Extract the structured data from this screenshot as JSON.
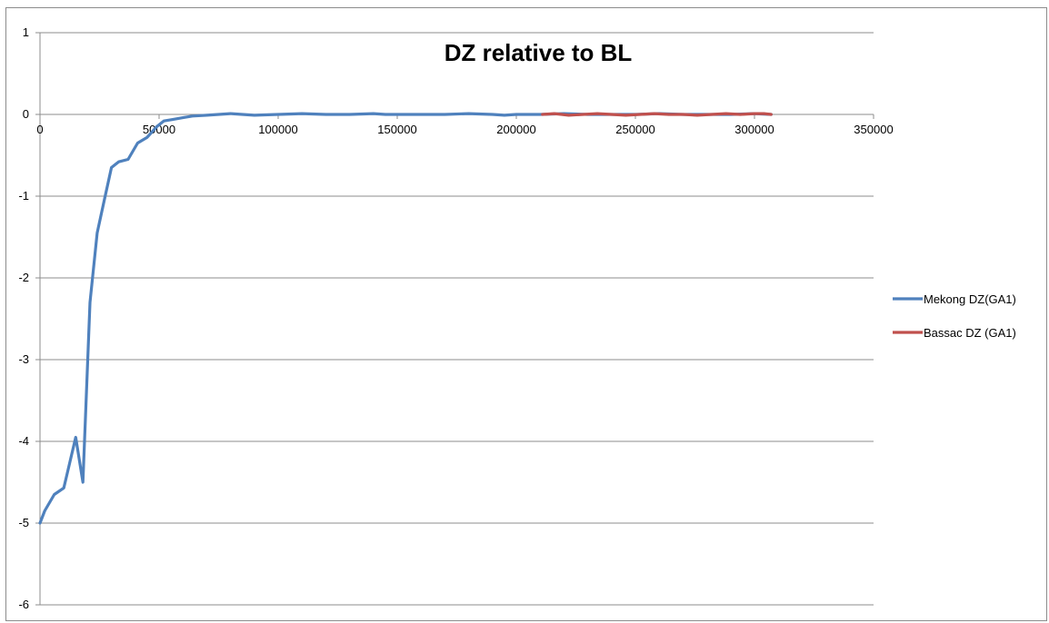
{
  "chart_data": {
    "type": "line",
    "title": "DZ relative to BL",
    "xlabel": "",
    "ylabel": "",
    "xlim": [
      0,
      350000
    ],
    "ylim": [
      -6,
      1
    ],
    "x_ticks": [
      "0",
      "50000",
      "100000",
      "150000",
      "200000",
      "250000",
      "300000",
      "350000"
    ],
    "y_ticks": [
      "1",
      "0",
      "-1",
      "-2",
      "-3",
      "-4",
      "-5",
      "-6"
    ],
    "grid": "horizontal",
    "legend_position": "right",
    "series": [
      {
        "name": "Mekong DZ(GA1)",
        "color": "#4f81bd",
        "x": [
          0,
          2000,
          6000,
          10000,
          15000,
          18000,
          21000,
          24000,
          27000,
          30000,
          33000,
          37000,
          41000,
          45000,
          49000,
          52000,
          56000,
          60000,
          64000,
          70000,
          75000,
          80000,
          85000,
          90000,
          100000,
          110000,
          120000,
          130000,
          140000,
          145000,
          150000,
          160000,
          170000,
          180000,
          190000,
          195000,
          200000,
          210000,
          220000,
          230000,
          240000,
          250000,
          260000,
          270000,
          280000,
          290000,
          300000,
          307000
        ],
        "y": [
          -5.0,
          -4.85,
          -4.65,
          -4.57,
          -3.95,
          -4.5,
          -2.3,
          -1.45,
          -1.05,
          -0.65,
          -0.58,
          -0.55,
          -0.35,
          -0.28,
          -0.15,
          -0.08,
          -0.06,
          -0.04,
          -0.02,
          -0.01,
          0.0,
          0.01,
          0.0,
          -0.01,
          0.0,
          0.01,
          0.0,
          0.0,
          0.01,
          0.0,
          0.0,
          0.0,
          0.0,
          0.01,
          0.0,
          -0.01,
          0.0,
          0.0,
          0.01,
          0.0,
          0.0,
          0.0,
          0.01,
          0.0,
          0.0,
          0.0,
          0.01,
          0.0
        ]
      },
      {
        "name": "Bassac DZ (GA1)",
        "color": "#c0504d",
        "x": [
          211000,
          216000,
          222000,
          228000,
          234000,
          240000,
          246000,
          252000,
          258000,
          264000,
          270000,
          276000,
          282000,
          288000,
          294000,
          300000,
          304000,
          307000
        ],
        "y": [
          0.0,
          0.01,
          -0.01,
          0.0,
          0.01,
          0.0,
          -0.01,
          0.0,
          0.01,
          0.0,
          0.0,
          -0.01,
          0.0,
          0.01,
          0.0,
          0.01,
          0.01,
          0.0
        ]
      }
    ]
  }
}
